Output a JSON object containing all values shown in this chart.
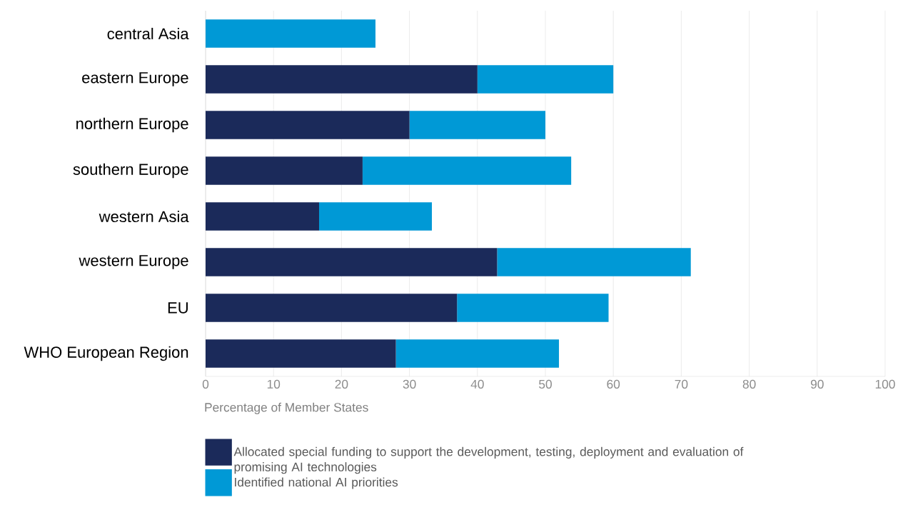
{
  "chart_data": {
    "type": "bar",
    "orientation": "horizontal",
    "stacked": true,
    "categories": [
      "central Asia",
      "eastern Europe",
      "northern Europe",
      "southern Europe",
      "western Asia",
      "western Europe",
      "EU",
      "WHO European Region"
    ],
    "series": [
      {
        "name": "Allocated special funding to support the development, testing, deployment and evaluation of promising AI technologies",
        "color": "#1b2a5a",
        "values": [
          0,
          40,
          30,
          23.1,
          16.7,
          42.9,
          37,
          28
        ]
      },
      {
        "name": "Identified national AI priorities",
        "color": "#0099d6",
        "values": [
          25,
          20,
          20,
          30.7,
          16.6,
          28.5,
          22.3,
          24
        ]
      }
    ],
    "xlabel": "Percentage of Member States",
    "xlim": [
      0,
      100
    ],
    "xticks": [
      0,
      10,
      20,
      30,
      40,
      50,
      60,
      70,
      80,
      90,
      100
    ],
    "grid": "x",
    "legend": "bottom"
  }
}
